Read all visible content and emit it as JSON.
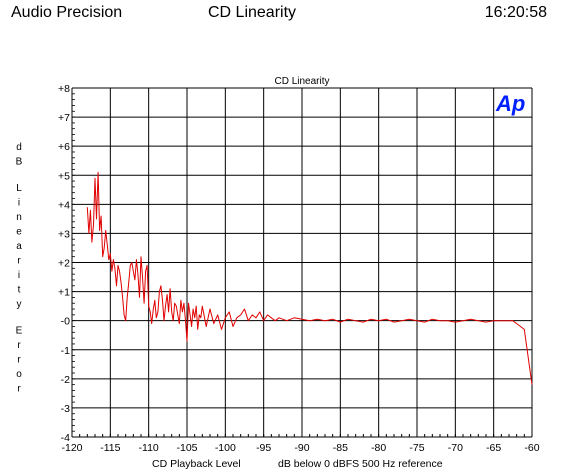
{
  "header": {
    "left": "Audio Precision",
    "center": "CD Linearity",
    "right": "16:20:58"
  },
  "logo_text": "Ap",
  "colors": {
    "trace": "#e00000",
    "logo": "#0020ff",
    "grid": "#000000"
  },
  "chart_data": {
    "type": "line",
    "title": "CD Linearity",
    "ylabel": "dB Linearity Error",
    "xlabel_left": "CD Playback Level",
    "xlabel_right": "dB below 0 dBFS 500 Hz reference",
    "xlim": [
      -120,
      -60
    ],
    "ylim": [
      -4,
      8
    ],
    "grid": true,
    "xticks": [
      -120,
      -115,
      -110,
      -105,
      -100,
      -95,
      -90,
      -85,
      -80,
      -75,
      -70,
      -65,
      -60
    ],
    "yticks": [
      8,
      7,
      6,
      5,
      4,
      3,
      2,
      1,
      0,
      -1,
      -2,
      -3,
      -4
    ],
    "xtick_labels": [
      "-120",
      "-115",
      "-110",
      "-105",
      "-100",
      "-95",
      "-90",
      "-85",
      "-80",
      "-75",
      "-70",
      "-65",
      "-60"
    ],
    "ytick_labels": [
      "+8",
      "+7",
      "+6",
      "+5",
      "+4",
      "+3",
      "+2",
      "+1",
      "-0",
      "-1",
      "-2",
      "-3",
      "-4"
    ],
    "series": [
      {
        "color": "#e00000",
        "x": [
          -118.0,
          -117.8,
          -117.6,
          -117.4,
          -117.2,
          -117.0,
          -116.8,
          -116.6,
          -116.4,
          -116.2,
          -116.0,
          -115.8,
          -115.6,
          -115.4,
          -115.2,
          -115.0,
          -114.8,
          -114.6,
          -114.4,
          -114.2,
          -114.0,
          -113.8,
          -113.6,
          -113.4,
          -113.2,
          -113.0,
          -112.8,
          -112.6,
          -112.4,
          -112.2,
          -112.0,
          -111.8,
          -111.6,
          -111.4,
          -111.2,
          -111.0,
          -110.8,
          -110.6,
          -110.4,
          -110.2,
          -110.0,
          -109.8,
          -109.6,
          -109.4,
          -109.2,
          -109.0,
          -108.8,
          -108.6,
          -108.4,
          -108.2,
          -108.0,
          -107.8,
          -107.6,
          -107.4,
          -107.2,
          -107.0,
          -106.8,
          -106.6,
          -106.4,
          -106.2,
          -106.0,
          -105.8,
          -105.6,
          -105.4,
          -105.2,
          -105.0,
          -104.8,
          -104.6,
          -104.4,
          -104.2,
          -104.0,
          -103.8,
          -103.6,
          -103.4,
          -103.2,
          -103.0,
          -102.5,
          -102.0,
          -101.5,
          -101.0,
          -100.5,
          -100.0,
          -99.5,
          -99.0,
          -98.5,
          -98.0,
          -97.5,
          -97.0,
          -96.5,
          -96.0,
          -95.5,
          -95.0,
          -94.5,
          -94.0,
          -93.5,
          -93.0,
          -92.0,
          -91.0,
          -90.0,
          -89.0,
          -88.0,
          -87.0,
          -86.0,
          -85.0,
          -84.0,
          -83.0,
          -82.0,
          -81.0,
          -80.0,
          -79.0,
          -78.0,
          -77.0,
          -76.0,
          -75.0,
          -74.0,
          -73.0,
          -72.0,
          -71.0,
          -70.0,
          -69.0,
          -68.0,
          -67.0,
          -66.0,
          -65.0,
          -64.0,
          -63.0,
          -62.5,
          -62.0,
          -61.0,
          -60.0
        ],
        "y": [
          3.9,
          3.0,
          3.8,
          2.7,
          3.3,
          4.9,
          3.5,
          5.1,
          3.1,
          3.6,
          2.2,
          2.5,
          3.1,
          2.6,
          2.1,
          2.3,
          1.7,
          2.1,
          1.8,
          1.2,
          1.9,
          1.7,
          1.3,
          0.8,
          0.2,
          0.0,
          0.8,
          1.3,
          1.9,
          2.0,
          1.7,
          1.4,
          2.1,
          1.6,
          0.8,
          2.2,
          1.5,
          0.6,
          1.7,
          1.9,
          0.5,
          0.3,
          -0.1,
          0.4,
          0.7,
          0.1,
          0.3,
          1.0,
          1.2,
          0.7,
          0.0,
          0.5,
          0.9,
          0.3,
          1.1,
          0.3,
          0.0,
          0.6,
          0.5,
          0.2,
          -0.1,
          0.7,
          0.3,
          0.6,
          0.0,
          -0.7,
          0.6,
          0.2,
          -0.2,
          0.4,
          0.1,
          0.5,
          -0.3,
          0.2,
          0.1,
          0.5,
          -0.2,
          0.4,
          -0.1,
          0.2,
          -0.3,
          0.1,
          0.3,
          -0.2,
          0.1,
          0.2,
          0.4,
          0.0,
          0.2,
          0.1,
          0.3,
          0.0,
          0.2,
          0.1,
          0.0,
          0.1,
          0.0,
          0.1,
          0.05,
          0.0,
          0.05,
          0.0,
          0.05,
          -0.05,
          0.05,
          0.0,
          -0.05,
          0.05,
          0.0,
          0.05,
          -0.05,
          0.0,
          0.05,
          0.0,
          -0.05,
          0.05,
          0.0,
          0.0,
          -0.05,
          0.0,
          0.05,
          0.0,
          -0.05,
          0.0,
          0.0,
          0.0,
          0.0,
          -0.1,
          -0.3,
          -2.2
        ]
      }
    ]
  }
}
